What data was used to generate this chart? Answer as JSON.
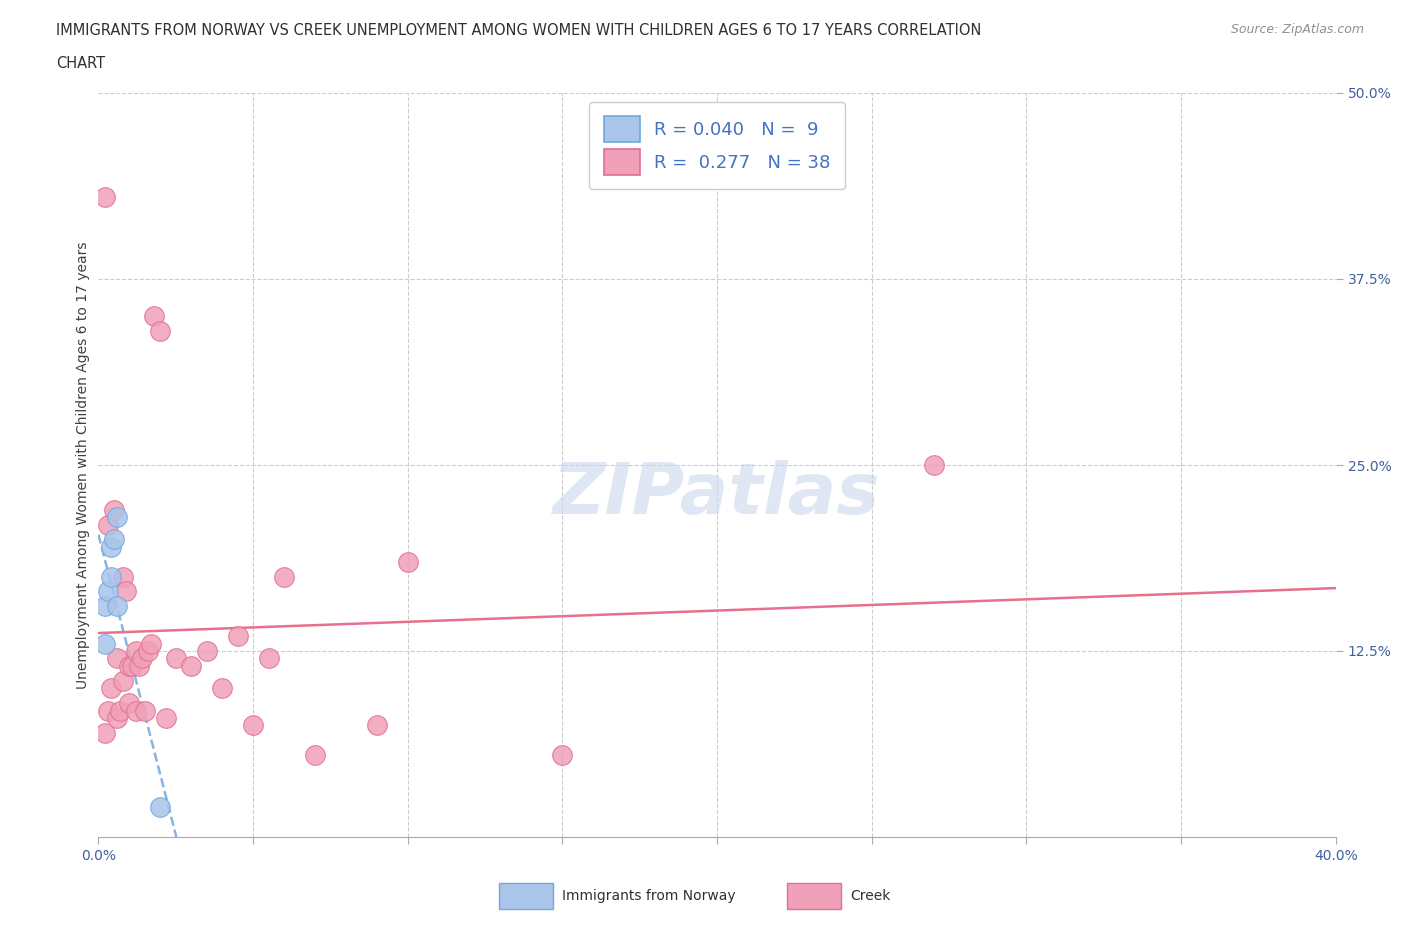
{
  "title_line1": "IMMIGRANTS FROM NORWAY VS CREEK UNEMPLOYMENT AMONG WOMEN WITH CHILDREN AGES 6 TO 17 YEARS CORRELATION",
  "title_line2": "CHART",
  "source": "Source: ZipAtlas.com",
  "ylabel": "Unemployment Among Women with Children Ages 6 to 17 years",
  "xlim": [
    0.0,
    0.4
  ],
  "ylim": [
    0.0,
    0.5
  ],
  "norway_color": "#aac4ea",
  "norway_edge": "#6fa8dc",
  "creek_color": "#f0a0b8",
  "creek_edge": "#e07090",
  "norway_R": 0.04,
  "norway_N": 9,
  "creek_R": 0.277,
  "creek_N": 38,
  "norway_scatter_x": [
    0.002,
    0.002,
    0.003,
    0.004,
    0.004,
    0.005,
    0.006,
    0.006,
    0.02
  ],
  "norway_scatter_y": [
    0.13,
    0.155,
    0.165,
    0.175,
    0.195,
    0.2,
    0.215,
    0.155,
    0.02
  ],
  "creek_scatter_x": [
    0.002,
    0.002,
    0.003,
    0.003,
    0.004,
    0.005,
    0.006,
    0.006,
    0.007,
    0.008,
    0.008,
    0.009,
    0.01,
    0.01,
    0.011,
    0.012,
    0.012,
    0.013,
    0.014,
    0.015,
    0.016,
    0.017,
    0.018,
    0.02,
    0.022,
    0.025,
    0.03,
    0.035,
    0.04,
    0.045,
    0.05,
    0.055,
    0.06,
    0.07,
    0.09,
    0.1,
    0.15,
    0.27
  ],
  "creek_scatter_y": [
    0.43,
    0.07,
    0.085,
    0.21,
    0.1,
    0.22,
    0.08,
    0.12,
    0.085,
    0.105,
    0.175,
    0.165,
    0.09,
    0.115,
    0.115,
    0.085,
    0.125,
    0.115,
    0.12,
    0.085,
    0.125,
    0.13,
    0.35,
    0.34,
    0.08,
    0.12,
    0.115,
    0.125,
    0.1,
    0.135,
    0.075,
    0.12,
    0.175,
    0.055,
    0.075,
    0.185,
    0.055,
    0.25
  ],
  "watermark": "ZIPatlas",
  "watermark_color": "#ccd8ee",
  "legend_color": "#4472c4",
  "trendline_norway_color": "#88b4e0",
  "trendline_creek_color": "#e8708c",
  "background_color": "#ffffff"
}
